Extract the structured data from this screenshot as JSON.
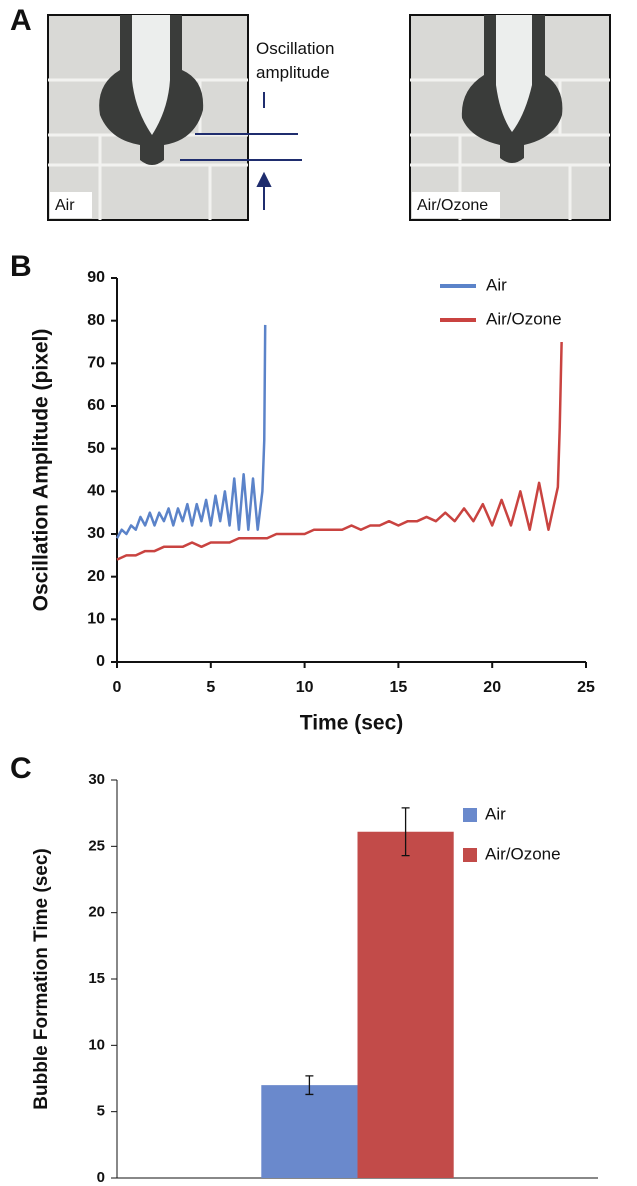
{
  "panel_a": {
    "label": "A",
    "annotation": "Oscillation amplitude",
    "images": [
      "Air",
      "Air/Ozone"
    ]
  },
  "chart_data": [
    {
      "type": "line",
      "panel": "B",
      "xlabel": "Time (sec)",
      "ylabel": "Oscillation Amplitude (pixel)",
      "xlim": [
        0,
        25
      ],
      "xticks": [
        0,
        5,
        10,
        15,
        20,
        25
      ],
      "ylim": [
        0,
        90
      ],
      "yticks": [
        0,
        10,
        20,
        30,
        40,
        50,
        60,
        70,
        80,
        90
      ],
      "legend": "top-right",
      "series": [
        {
          "name": "Air",
          "color": "#5b83c9",
          "x": [
            0,
            0.25,
            0.5,
            0.75,
            1,
            1.25,
            1.5,
            1.75,
            2,
            2.25,
            2.5,
            2.75,
            3,
            3.25,
            3.5,
            3.75,
            4,
            4.25,
            4.5,
            4.75,
            5,
            5.25,
            5.5,
            5.75,
            6,
            6.25,
            6.5,
            6.75,
            7,
            7.25,
            7.5,
            7.75,
            7.85,
            7.9
          ],
          "values": [
            29,
            31,
            30,
            32,
            31,
            34,
            32,
            35,
            32,
            35,
            33,
            36,
            32,
            36,
            33,
            37,
            32,
            37,
            33,
            38,
            32,
            39,
            33,
            40,
            32,
            43,
            31,
            44,
            31,
            43,
            31,
            40,
            52,
            79
          ]
        },
        {
          "name": "Air/Ozone",
          "color": "#c94340",
          "x": [
            0,
            0.5,
            1,
            1.5,
            2,
            2.5,
            3,
            3.5,
            4,
            4.5,
            5,
            5.5,
            6,
            6.5,
            7,
            7.5,
            8,
            8.5,
            9,
            9.5,
            10,
            10.5,
            11,
            11.5,
            12,
            12.5,
            13,
            13.5,
            14,
            14.5,
            15,
            15.5,
            16,
            16.5,
            17,
            17.5,
            18,
            18.5,
            19,
            19.5,
            20,
            20.5,
            21,
            21.5,
            22,
            22.5,
            23,
            23.5,
            23.6,
            23.7
          ],
          "values": [
            24,
            25,
            25,
            26,
            26,
            27,
            27,
            27,
            28,
            27,
            28,
            28,
            28,
            29,
            29,
            29,
            29,
            30,
            30,
            30,
            30,
            31,
            31,
            31,
            31,
            32,
            31,
            32,
            32,
            33,
            32,
            33,
            33,
            34,
            33,
            35,
            33,
            36,
            33,
            37,
            32,
            38,
            32,
            40,
            31,
            42,
            31,
            41,
            55,
            75
          ]
        }
      ]
    },
    {
      "type": "bar",
      "panel": "C",
      "ylabel": "Bubble Formation Time (sec)",
      "categories": [
        null
      ],
      "ylim": [
        0,
        30
      ],
      "yticks": [
        0,
        5,
        10,
        15,
        20,
        25,
        30
      ],
      "legend": "top-right",
      "series": [
        {
          "name": "Air",
          "color": "#6a89cc",
          "values": [
            7.0
          ],
          "errors": [
            0.7
          ]
        },
        {
          "name": "Air/Ozone",
          "color": "#c24b49",
          "values": [
            26.1
          ],
          "errors": [
            1.8
          ]
        }
      ]
    }
  ]
}
